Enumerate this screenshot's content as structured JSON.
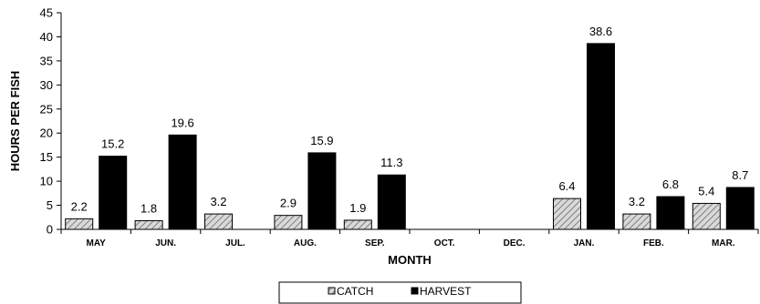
{
  "chart_data": {
    "type": "bar",
    "title": "",
    "xlabel": "MONTH",
    "ylabel": "HOURS PER FISH",
    "ylim": [
      0,
      45
    ],
    "yticks": [
      0,
      5,
      10,
      15,
      20,
      25,
      30,
      35,
      40,
      45
    ],
    "categories": [
      "MAY",
      "JUN.",
      "JUL.",
      "AUG.",
      "SEP.",
      "OCT.",
      "DEC.",
      "JAN.",
      "FEB.",
      "MAR."
    ],
    "series": [
      {
        "name": "CATCH",
        "pattern": "hatched",
        "values": [
          2.2,
          1.8,
          3.2,
          2.9,
          1.9,
          null,
          null,
          6.4,
          3.2,
          5.4
        ],
        "labels": [
          "2.2",
          "1.8",
          "3.2",
          "2.9",
          "1.9",
          null,
          null,
          "6.4",
          "3.2",
          "5.4"
        ]
      },
      {
        "name": "HARVEST",
        "pattern": "solid",
        "values": [
          15.2,
          19.6,
          null,
          15.9,
          11.3,
          null,
          null,
          38.6,
          6.8,
          8.7
        ],
        "labels": [
          "15.2",
          "19.6",
          null,
          "15.9",
          "11.3",
          null,
          null,
          "38.6",
          "6.8",
          "8.7"
        ]
      }
    ],
    "legend_position": "bottom",
    "grid": false,
    "colors": {
      "catch_fill": "#d9d9d9",
      "catch_hatch": "#7f7f7f",
      "harvest_fill": "#000000"
    }
  }
}
